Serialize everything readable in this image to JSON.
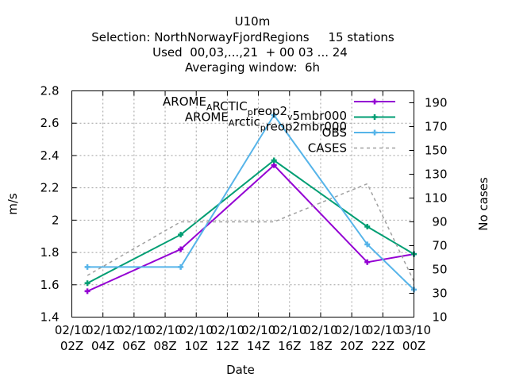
{
  "chart_data": {
    "type": "line",
    "title_lines": [
      "U10m",
      "Selection: NorthNorwayFjordRegions     15 stations",
      "Used  00,03,...,21  + 00 03 ... 24",
      "Averaging window:  6h"
    ],
    "xlabel": "Date",
    "ylabel": "m/s",
    "y2label": "No cases",
    "xlim": [
      2,
      24
    ],
    "ylim": [
      1.4,
      2.8
    ],
    "y2lim": [
      10,
      200
    ],
    "x_ticks": [
      2,
      4,
      6,
      8,
      10,
      12,
      14,
      16,
      18,
      20,
      22,
      24
    ],
    "x_tick_labels": [
      [
        "02/10",
        "02Z"
      ],
      [
        "02/10",
        "04Z"
      ],
      [
        "02/10",
        "06Z"
      ],
      [
        "02/10",
        "08Z"
      ],
      [
        "02/10",
        "10Z"
      ],
      [
        "02/10",
        "12Z"
      ],
      [
        "02/10",
        "14Z"
      ],
      [
        "02/10",
        "16Z"
      ],
      [
        "02/10",
        "18Z"
      ],
      [
        "02/10",
        "20Z"
      ],
      [
        "02/10",
        "22Z"
      ],
      [
        "03/10",
        "00Z"
      ]
    ],
    "y_ticks": [
      1.4,
      1.6,
      1.8,
      2.0,
      2.2,
      2.4,
      2.6,
      2.8
    ],
    "y_tick_labels": [
      "1.4",
      "1.6",
      "1.8",
      "2",
      "2.2",
      "2.4",
      "2.6",
      "2.8"
    ],
    "y2_ticks": [
      10,
      30,
      50,
      70,
      90,
      110,
      130,
      150,
      170,
      190
    ],
    "y2_tick_labels": [
      "10",
      "30",
      "50",
      "70",
      "90",
      "110",
      "130",
      "150",
      "170",
      "190"
    ],
    "grid": true,
    "legend_position": "top-right",
    "series": [
      {
        "name": "AROME_ARCTIC_preop2_v5mbr000",
        "legend_parts": [
          [
            "AROME",
            0
          ],
          [
            "A",
            1
          ],
          [
            "RCTIC",
            0
          ],
          [
            "p",
            1
          ],
          [
            "reop2",
            0
          ],
          [
            "v",
            1
          ],
          [
            "5mbr000",
            0
          ]
        ],
        "color": "#9400d3",
        "marker": "plus",
        "axis": "y",
        "x": [
          3,
          9,
          15,
          21,
          24
        ],
        "values": [
          1.56,
          1.82,
          2.34,
          1.74,
          1.79
        ]
      },
      {
        "name": "AROME_Arctic_preop2mbr000",
        "legend_parts": [
          [
            "AROME",
            0
          ],
          [
            "A",
            1
          ],
          [
            "rctic",
            0
          ],
          [
            "p",
            1
          ],
          [
            "reop2mbr000",
            0
          ]
        ],
        "color": "#009e73",
        "marker": "plus",
        "axis": "y",
        "x": [
          3,
          9,
          15,
          21,
          24
        ],
        "values": [
          1.61,
          1.91,
          2.37,
          1.96,
          1.79
        ]
      },
      {
        "name": "OBS",
        "legend_parts": [
          [
            "OBS",
            0
          ]
        ],
        "color": "#56b4e9",
        "marker": "plus",
        "axis": "y",
        "x": [
          3,
          9,
          15,
          21,
          24
        ],
        "values": [
          1.71,
          1.71,
          2.65,
          1.85,
          1.57
        ]
      },
      {
        "name": "CASES",
        "legend_parts": [
          [
            "CASES",
            0
          ]
        ],
        "color": "#a0a0a0",
        "marker": "none",
        "dashed": true,
        "axis": "y2",
        "x": [
          3,
          9,
          15,
          21,
          24
        ],
        "values": [
          45,
          90,
          90,
          122,
          40
        ]
      }
    ]
  }
}
